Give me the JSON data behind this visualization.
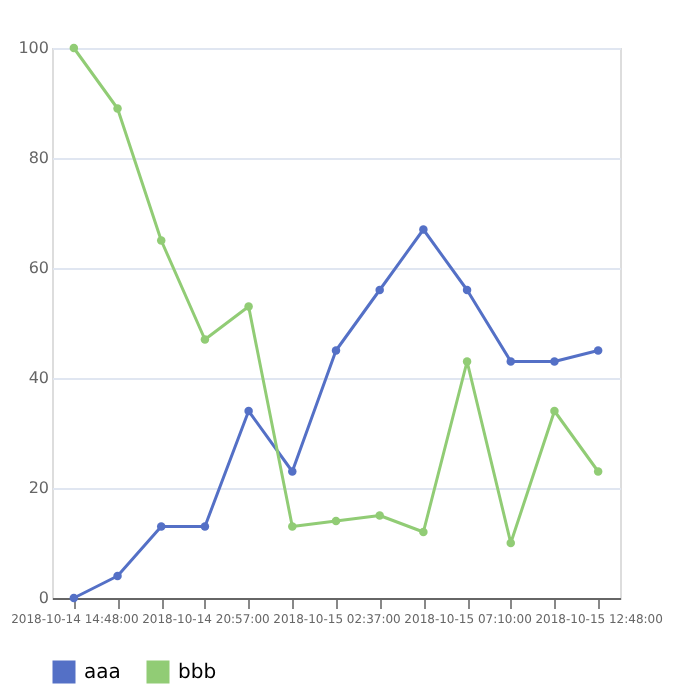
{
  "chart_data": {
    "type": "line",
    "categories": [
      "2018-10-14 14:48:00",
      null,
      null,
      "2018-10-14 20:57:00",
      null,
      null,
      "2018-10-15 02:37:00",
      null,
      null,
      "2018-10-15 07:10:00",
      null,
      null,
      "2018-10-15 12:48:00"
    ],
    "series": [
      {
        "name": "aaa",
        "color": "#5470c6",
        "values": [
          0,
          4,
          13,
          13,
          34,
          23,
          45,
          56,
          67,
          56,
          43,
          43,
          45
        ]
      },
      {
        "name": "bbb",
        "color": "#91cc75",
        "values": [
          100,
          89,
          65,
          47,
          53,
          13,
          14,
          15,
          12,
          43,
          10,
          34,
          23
        ]
      }
    ],
    "ylim": [
      0,
      100
    ],
    "yticks": [
      0,
      20,
      40,
      60,
      80,
      100
    ],
    "grid": "y",
    "legend": "bottom",
    "marker": "circle",
    "line_style": "solid"
  }
}
